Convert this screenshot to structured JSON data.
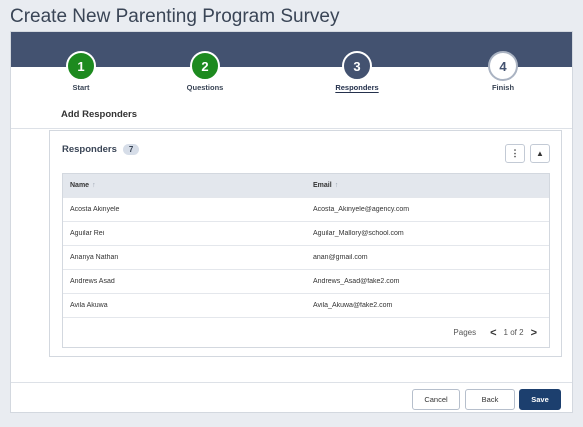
{
  "page": {
    "title": "Create New Parenting Program Survey"
  },
  "stepper": {
    "steps": [
      {
        "number": "1",
        "label": "Start"
      },
      {
        "number": "2",
        "label": "Questions"
      },
      {
        "number": "3",
        "label": "Responders"
      },
      {
        "number": "4",
        "label": "Finish"
      }
    ]
  },
  "section": {
    "title": "Add Responders"
  },
  "responders": {
    "title": "Responders",
    "count": "7",
    "columns": {
      "name": "Name",
      "email": "Email",
      "sort_glyph": "↑"
    },
    "rows": [
      {
        "name": "Acosta Akinyele",
        "email": "Acosta_Akinyele@agency.com"
      },
      {
        "name": "Aguilar Rei",
        "email": "Aguilar_Mallory@school.com"
      },
      {
        "name": "Ananya Nathan",
        "email": "anan@gmail.com"
      },
      {
        "name": "Andrews Asad",
        "email": "Andrews_Asad@fake2.com"
      },
      {
        "name": "Avila Akuwa",
        "email": "Avila_Akuwa@fake2.com"
      }
    ],
    "pagination": {
      "label": "Pages",
      "info": "1 of 2",
      "prev": "<",
      "next": ">"
    },
    "icons": {
      "menu": "⋮",
      "collapse": "▲"
    }
  },
  "footer": {
    "cancel_label": "Cancel",
    "back_label": "Back",
    "save_label": "Save"
  }
}
